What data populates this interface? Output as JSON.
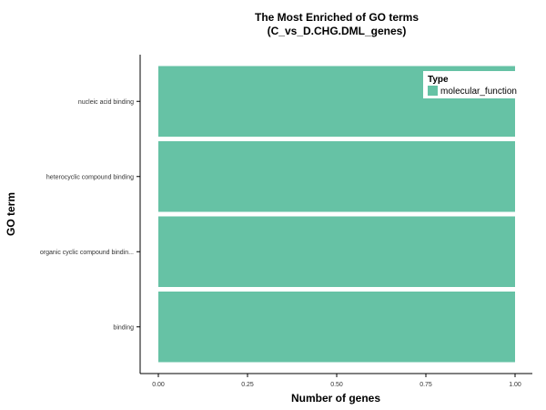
{
  "chart_data": {
    "type": "bar",
    "orientation": "horizontal",
    "title": [
      "The Most Enriched of GO terms",
      "(C_vs_D.CHG.DML_genes)"
    ],
    "xlabel": "Number of genes",
    "ylabel": "GO term",
    "categories": [
      "nucleic acid binding",
      "heterocyclic compound binding",
      "organic cyclic compound bindin...",
      "binding"
    ],
    "series": [
      {
        "name": "molecular_function",
        "values": [
          1,
          1,
          1,
          1
        ],
        "color": "#66c2a5"
      }
    ],
    "xlim": [
      0,
      1
    ],
    "xticks": [
      "0.00",
      "0.25",
      "0.50",
      "0.75",
      "1.00"
    ],
    "legend": {
      "title": "Type",
      "position": "top-right"
    },
    "grid": false
  }
}
